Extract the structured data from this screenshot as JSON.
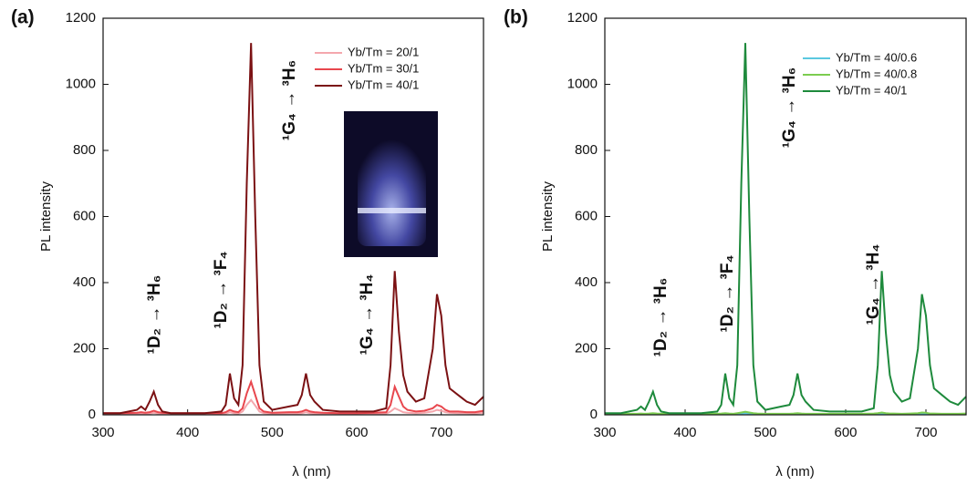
{
  "chart_data": [
    {
      "type": "line",
      "panel_label": "(a)",
      "xlabel": "λ (nm)",
      "ylabel": "PL intensity",
      "xlim": [
        300,
        750
      ],
      "xticks": [
        300,
        400,
        500,
        600,
        700
      ],
      "ylim": [
        0,
        1200
      ],
      "yticks": [
        0,
        200,
        400,
        600,
        800,
        1000,
        1200
      ],
      "legend": "upper right",
      "x": [
        300,
        320,
        340,
        345,
        350,
        355,
        360,
        365,
        370,
        380,
        400,
        420,
        440,
        445,
        450,
        455,
        460,
        465,
        470,
        475,
        480,
        485,
        490,
        500,
        520,
        530,
        535,
        540,
        545,
        550,
        560,
        580,
        600,
        620,
        635,
        640,
        645,
        650,
        655,
        660,
        670,
        680,
        690,
        695,
        700,
        705,
        710,
        720,
        730,
        740,
        750
      ],
      "series": [
        {
          "name": "Yb/Tm = 20/1",
          "color": "#f4a7ad",
          "values": [
            2,
            2,
            3,
            4,
            3,
            4,
            6,
            4,
            3,
            2,
            2,
            2,
            2,
            4,
            8,
            5,
            4,
            10,
            30,
            45,
            28,
            10,
            5,
            3,
            4,
            4,
            5,
            8,
            5,
            4,
            3,
            2,
            2,
            3,
            4,
            10,
            20,
            14,
            8,
            6,
            5,
            6,
            10,
            15,
            12,
            8,
            6,
            5,
            5,
            4,
            6
          ]
        },
        {
          "name": "Yb/Tm = 30/1",
          "color": "#e8474e",
          "values": [
            5,
            5,
            6,
            8,
            6,
            8,
            12,
            8,
            6,
            5,
            5,
            5,
            5,
            8,
            15,
            10,
            8,
            20,
            65,
            100,
            60,
            20,
            10,
            6,
            8,
            8,
            10,
            15,
            10,
            8,
            6,
            5,
            5,
            6,
            8,
            30,
            85,
            55,
            25,
            15,
            10,
            12,
            20,
            30,
            25,
            15,
            10,
            10,
            8,
            8,
            12
          ]
        },
        {
          "name": "Yb/Tm = 40/1",
          "color": "#7b1113",
          "values": [
            5,
            5,
            15,
            25,
            15,
            40,
            70,
            30,
            10,
            5,
            5,
            5,
            10,
            30,
            125,
            50,
            30,
            150,
            700,
            1125,
            600,
            150,
            40,
            15,
            25,
            30,
            60,
            125,
            60,
            40,
            15,
            10,
            10,
            10,
            20,
            150,
            435,
            250,
            120,
            70,
            40,
            50,
            200,
            365,
            300,
            150,
            80,
            60,
            40,
            30,
            55
          ]
        }
      ],
      "annotations": [
        "¹D₂ → ³H₆",
        "¹D₂ → ³F₄",
        "¹G₄ → ³H₆",
        "¹G₄ → ³H₄"
      ]
    },
    {
      "type": "line",
      "panel_label": "(b)",
      "xlabel": "λ (nm)",
      "ylabel": "PL intensity",
      "xlim": [
        300,
        750
      ],
      "xticks": [
        300,
        400,
        500,
        600,
        700
      ],
      "ylim": [
        0,
        1200
      ],
      "yticks": [
        0,
        200,
        400,
        600,
        800,
        1000,
        1200
      ],
      "legend": "upper right",
      "x": [
        300,
        320,
        340,
        345,
        350,
        355,
        360,
        365,
        370,
        380,
        400,
        420,
        440,
        445,
        450,
        455,
        460,
        465,
        470,
        475,
        480,
        485,
        490,
        500,
        520,
        530,
        535,
        540,
        545,
        550,
        560,
        580,
        600,
        620,
        635,
        640,
        645,
        650,
        655,
        660,
        670,
        680,
        690,
        695,
        700,
        705,
        710,
        720,
        730,
        740,
        750
      ],
      "series": [
        {
          "name": "Yb/Tm = 40/0.6",
          "color": "#5bc8e0",
          "values": [
            2,
            2,
            2,
            2,
            2,
            2,
            3,
            2,
            2,
            2,
            2,
            2,
            2,
            2,
            3,
            2,
            2,
            3,
            4,
            5,
            4,
            3,
            2,
            2,
            2,
            2,
            2,
            3,
            2,
            2,
            2,
            2,
            2,
            2,
            2,
            3,
            4,
            3,
            2,
            2,
            2,
            2,
            3,
            4,
            3,
            2,
            2,
            2,
            2,
            2,
            3
          ]
        },
        {
          "name": "Yb/Tm = 40/0.8",
          "color": "#7ccc4f",
          "values": [
            3,
            3,
            3,
            4,
            3,
            4,
            5,
            4,
            3,
            3,
            3,
            3,
            3,
            4,
            5,
            4,
            3,
            5,
            7,
            9,
            7,
            5,
            4,
            3,
            3,
            3,
            4,
            5,
            4,
            3,
            3,
            3,
            3,
            3,
            4,
            5,
            7,
            5,
            4,
            4,
            3,
            4,
            5,
            7,
            6,
            4,
            4,
            3,
            3,
            3,
            4
          ]
        },
        {
          "name": "Yb/Tm = 40/1",
          "color": "#1e8a3c",
          "values": [
            5,
            5,
            15,
            25,
            15,
            40,
            70,
            30,
            10,
            5,
            5,
            5,
            10,
            30,
            125,
            50,
            30,
            150,
            700,
            1125,
            600,
            150,
            40,
            15,
            25,
            30,
            60,
            125,
            60,
            40,
            15,
            10,
            10,
            10,
            20,
            150,
            435,
            250,
            120,
            70,
            40,
            50,
            200,
            365,
            300,
            150,
            80,
            60,
            40,
            30,
            55
          ]
        }
      ],
      "annotations": [
        "¹D₂ → ³H₆",
        "¹D₂ → ³F₄",
        "¹G₄ → ³H₆",
        "¹G₄ → ³H₄"
      ]
    }
  ]
}
